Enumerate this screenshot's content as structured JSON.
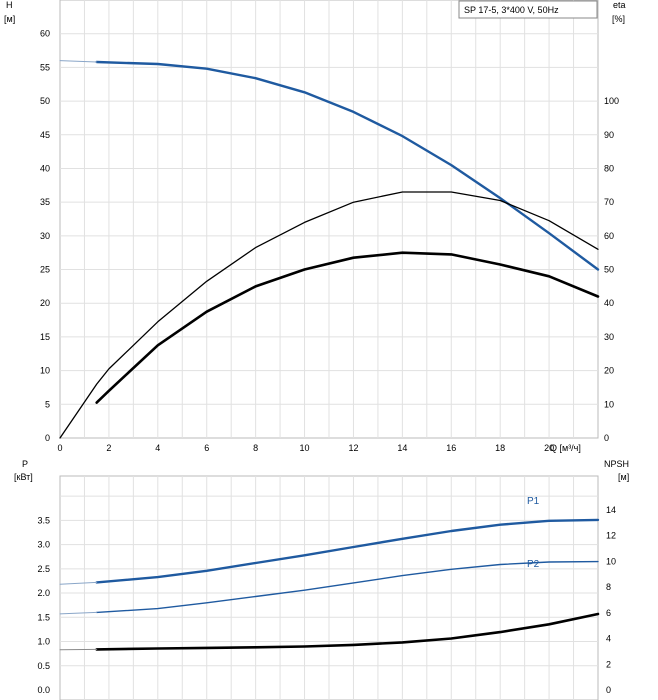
{
  "chart_data": [
    {
      "type": "line",
      "legend": "SP 17-5, 3*400 V, 50Hz",
      "xlabel": "Q [м³/ч]",
      "ylabel_line1": "H",
      "ylabel_line2": "[м]",
      "y2label_line1": "eta",
      "y2label_line2": "[%]",
      "xlim": [
        0,
        22
      ],
      "ylim": [
        0,
        65
      ],
      "y2lim": [
        0,
        130
      ],
      "grid": true,
      "x_ticks": [
        0,
        2,
        4,
        6,
        8,
        10,
        12,
        14,
        16,
        18,
        20
      ],
      "y_ticks": [
        0,
        5,
        10,
        15,
        20,
        25,
        30,
        35,
        40,
        45,
        50,
        55,
        60
      ],
      "y2_ticks": [
        0,
        10,
        20,
        30,
        40,
        50,
        60,
        70,
        80,
        90,
        100
      ],
      "series": [
        {
          "key": "H",
          "axis": "left",
          "color": "#1f5aa0",
          "x": [
            1.5,
            4,
            6,
            8,
            10,
            12,
            14,
            16,
            18,
            20,
            22
          ],
          "y": [
            55.8,
            55.5,
            54.8,
            53.4,
            51.3,
            48.4,
            44.8,
            40.5,
            35.6,
            30.4,
            25.0
          ]
        },
        {
          "key": "H_ext",
          "axis": "left",
          "color": "#8aa6c8",
          "x": [
            0,
            1.5
          ],
          "y": [
            56.0,
            55.8
          ]
        },
        {
          "key": "eta_pump",
          "axis": "right",
          "color": "#000000",
          "x": [
            0,
            1.5,
            2,
            4,
            6,
            8,
            10,
            12,
            14,
            16,
            18,
            20,
            22
          ],
          "y": [
            0,
            16,
            20.5,
            34.5,
            46.5,
            56.5,
            64,
            70,
            73,
            73,
            70.5,
            64.5,
            56
          ]
        },
        {
          "key": "eta_total",
          "axis": "right",
          "color": "#000000",
          "x": [
            1.5,
            2,
            4,
            6,
            8,
            10,
            12,
            14,
            16,
            18,
            20,
            22
          ],
          "y": [
            10.5,
            14,
            27.5,
            37.5,
            45,
            50,
            53.5,
            55,
            54.5,
            51.5,
            48,
            42
          ]
        }
      ]
    },
    {
      "type": "line",
      "ylabel_line1": "P",
      "ylabel_line2": "[кВт]",
      "y2label_line1": "NPSH",
      "y2label_line2": "[м]",
      "xlim": [
        0,
        22
      ],
      "ylim": [
        0,
        4.25
      ],
      "y2lim": [
        0,
        16
      ],
      "grid": true,
      "y_ticks": [
        "0.0",
        "0.5",
        "1.0",
        "1.5",
        "2.0",
        "2.5",
        "3.0",
        "3.5"
      ],
      "y2_ticks": [
        0,
        2,
        4,
        6,
        8,
        10,
        12,
        14
      ],
      "series": [
        {
          "name": "P1",
          "axis": "left",
          "color": "#1f5aa0",
          "x": [
            1.5,
            4,
            6,
            8,
            10,
            12,
            14,
            16,
            18,
            20,
            22
          ],
          "y": [
            2.22,
            2.33,
            2.46,
            2.62,
            2.78,
            2.95,
            3.12,
            3.28,
            3.41,
            3.49,
            3.51
          ]
        },
        {
          "key": "P1_ext",
          "axis": "left",
          "color": "#8aa6c8",
          "x": [
            0,
            1.5
          ],
          "y": [
            2.18,
            2.22
          ]
        },
        {
          "name": "P2",
          "axis": "left",
          "color": "#1f5aa0",
          "x": [
            1.5,
            4,
            6,
            8,
            10,
            12,
            14,
            16,
            18,
            20,
            22
          ],
          "y": [
            1.6,
            1.68,
            1.8,
            1.93,
            2.06,
            2.21,
            2.36,
            2.49,
            2.59,
            2.64,
            2.65
          ]
        },
        {
          "key": "P2_ext",
          "axis": "left",
          "color": "#8aa6c8",
          "x": [
            0,
            1.5
          ],
          "y": [
            1.57,
            1.6
          ]
        },
        {
          "key": "NPSH",
          "axis": "right",
          "color": "#000000",
          "x": [
            1.5,
            4,
            6,
            8,
            10,
            12,
            14,
            16,
            18,
            20,
            22
          ],
          "y": [
            3.15,
            3.22,
            3.27,
            3.32,
            3.38,
            3.5,
            3.7,
            4.0,
            4.5,
            5.1,
            5.9
          ]
        },
        {
          "key": "NPSH_ext",
          "axis": "right",
          "color": "#8a8a8a",
          "x": [
            0,
            1.5
          ],
          "y": [
            3.12,
            3.15
          ]
        }
      ]
    }
  ]
}
